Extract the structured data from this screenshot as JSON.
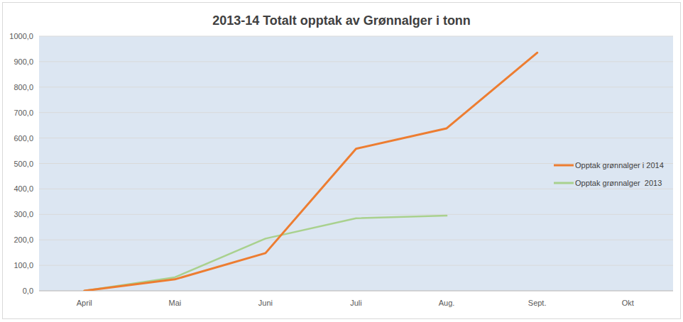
{
  "chart_data": {
    "type": "line",
    "title": "2013-14 Totalt opptak av Grønnalger i tonn",
    "categories": [
      "April",
      "Mai",
      "Juni",
      "Juli",
      "Aug.",
      "Sept.",
      "Okt"
    ],
    "series": [
      {
        "name": "Opptak grønnalger i 2014",
        "color": "#ed7d31",
        "values": [
          0,
          45,
          148,
          558,
          638,
          935,
          null
        ]
      },
      {
        "name": "Opptak grønnalger  2013",
        "color": "#a9d18e",
        "values": [
          0,
          53,
          205,
          285,
          295,
          null,
          null
        ]
      }
    ],
    "ylim": [
      0,
      1000
    ],
    "yticks": [
      {
        "value": 0,
        "label": "0,0"
      },
      {
        "value": 100,
        "label": "100,0"
      },
      {
        "value": 200,
        "label": "200,0"
      },
      {
        "value": 300,
        "label": "300,0"
      },
      {
        "value": 400,
        "label": "400,0"
      },
      {
        "value": 500,
        "label": "500,0"
      },
      {
        "value": 600,
        "label": "600,0"
      },
      {
        "value": 700,
        "label": "700,0"
      },
      {
        "value": 800,
        "label": "800,0"
      },
      {
        "value": 900,
        "label": "900,0"
      },
      {
        "value": 1000,
        "label": "1000,0"
      }
    ],
    "grid": true,
    "legend": "right"
  }
}
